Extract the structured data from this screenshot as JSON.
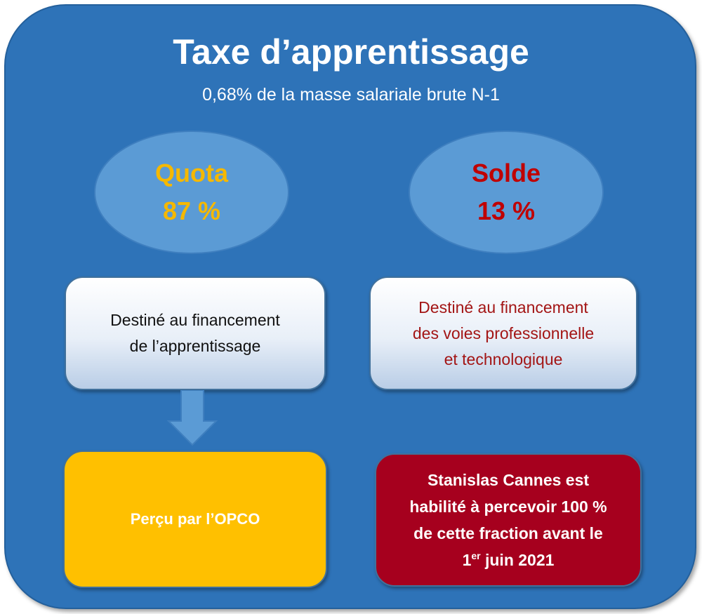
{
  "title": "Taxe d’apprentissage",
  "subtitle": "0,68% de la masse salariale brute N-1",
  "quota": {
    "label": "Quota",
    "percent": "87 %"
  },
  "solde": {
    "label": "Solde",
    "percent": "13 %"
  },
  "quota_card": {
    "line1": "Destiné au financement",
    "line2": "de l’apprentissage"
  },
  "solde_card": {
    "line1": "Destiné au financement",
    "line2": "des voies professionnelle",
    "line3": "et technologique"
  },
  "opco_box": {
    "text": "Perçu par l’OPCO"
  },
  "stanislas_box": {
    "line1": "Stanislas Cannes est",
    "line2": "habilité à percevoir 100 %",
    "line3": "de cette fraction avant le",
    "date_num": "1",
    "date_sup": "er",
    "date_rest": " juin 2021"
  },
  "colors": {
    "background": "#2e73b8",
    "ellipse": "#5b9bd5",
    "quota_text": "#f5b800",
    "solde_text": "#c00000",
    "solde_card_text": "#a31515",
    "opco_fill": "#ffc000",
    "stanislas_fill": "#a6001e"
  },
  "icons": {
    "arrow": "down-arrow-icon"
  }
}
